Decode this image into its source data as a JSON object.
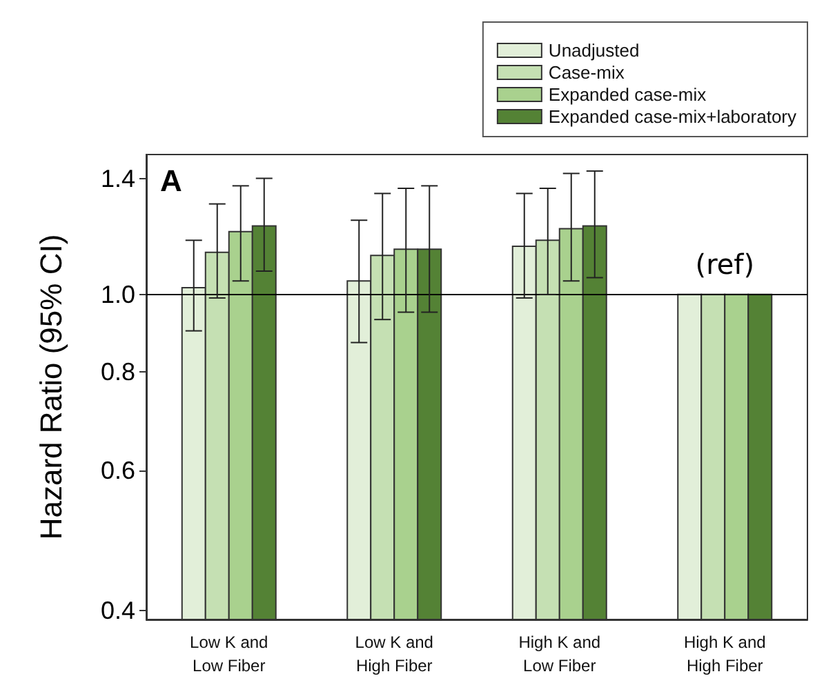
{
  "chart_data": {
    "type": "bar",
    "ylabel": "Hazard Ratio (95% CI)",
    "categories": [
      "Low K and\nLow Fiber",
      "Low K and\nHigh Fiber",
      "High K and\nLow Fiber",
      "High K and\nHigh Fiber"
    ],
    "series": [
      {
        "name": "Unadjusted",
        "color": "#e2efd9",
        "values": [
          1.02,
          1.04,
          1.15,
          1.0
        ],
        "errors": [
          [
            0.9,
            1.17
          ],
          [
            0.87,
            1.24
          ],
          [
            0.99,
            1.34
          ],
          null
        ]
      },
      {
        "name": "Case-mix",
        "color": "#c5e0b3",
        "values": [
          1.13,
          1.12,
          1.17,
          1.0
        ],
        "errors": [
          [
            0.99,
            1.3
          ],
          [
            0.93,
            1.34
          ],
          [
            1.0,
            1.36
          ],
          null
        ]
      },
      {
        "name": "Expanded case-mix",
        "color": "#a9d18e",
        "values": [
          1.2,
          1.14,
          1.21,
          1.0
        ],
        "errors": [
          [
            1.04,
            1.37
          ],
          [
            0.95,
            1.36
          ],
          [
            1.04,
            1.42
          ],
          null
        ]
      },
      {
        "name": "Expanded case-mix+laboratory",
        "color": "#548235",
        "values": [
          1.22,
          1.14,
          1.22,
          1.0
        ],
        "errors": [
          [
            1.07,
            1.4
          ],
          [
            0.95,
            1.37
          ],
          [
            1.05,
            1.43
          ],
          null
        ]
      }
    ],
    "log": "y",
    "ylim": [
      0.39,
      1.5
    ],
    "yticks": [
      0.4,
      0.6,
      0.8,
      {
        "value": 1,
        "label": "1.0"
      },
      1.4
    ],
    "ref_lines": [
      {
        "axis": "y",
        "value": 1,
        "label": null
      }
    ],
    "annotations": [
      "A",
      "(ref)"
    ],
    "legend": "top right",
    "grid": false
  }
}
